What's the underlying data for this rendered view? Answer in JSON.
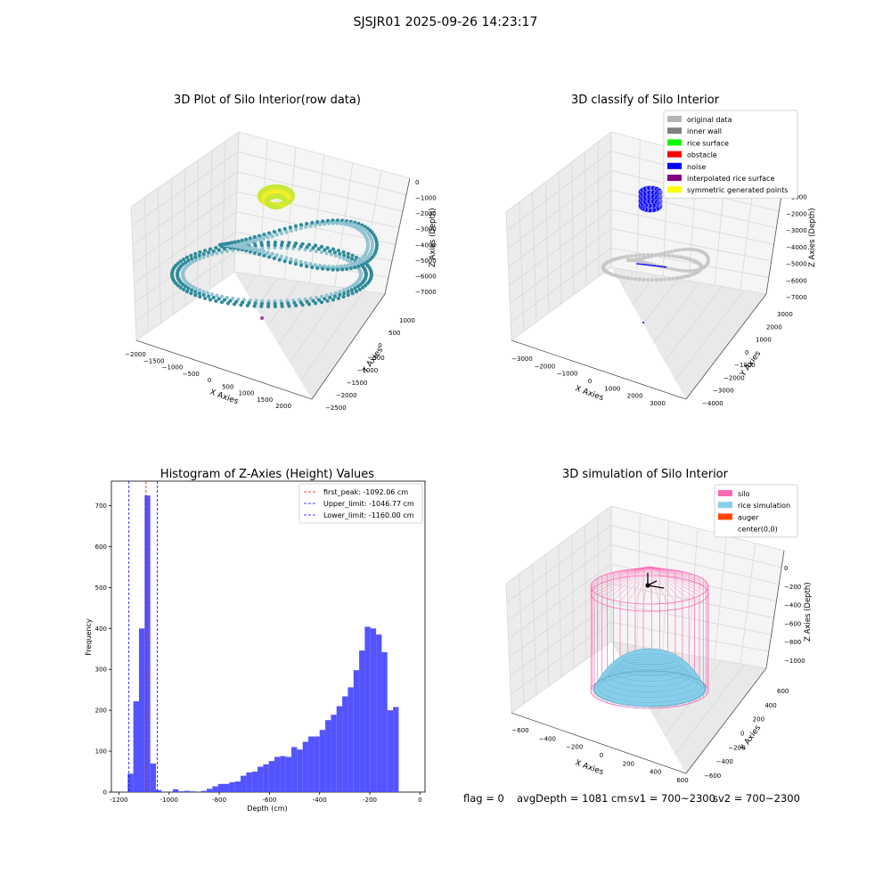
{
  "figure_title": "SJSJR01 2025-09-26 14:23:17",
  "footer": {
    "flag": "flag = 0",
    "avg_depth": "avgDepth = 1081 cm",
    "sv1": "sv1 = 700~2300",
    "sv2": "sv2 = 700~2300"
  },
  "colors": {
    "raw_points": "#2e8b9a",
    "raw_points_light": "#8fc3cf",
    "yellow_green": "#c9e836",
    "yellow": "#f2ee2a",
    "grey_data": "#c8c8c8",
    "hist_bar": "#4b4bff",
    "silo": "#ff69b4",
    "rice": "#87ceeb",
    "auger": "#ff4500",
    "peak_line": "#ff0000",
    "limit_line": "#0000ff"
  },
  "chart_data": [
    {
      "type": "scatter",
      "title": "3D Plot of Silo Interior(row data)",
      "xlabel": "X Axies",
      "ylabel": "Y Axies",
      "zlabel": "Z Axies (Depth)",
      "x_ticks": [
        "−2000",
        "−1500",
        "−1000",
        "−500",
        "0",
        "500",
        "1000",
        "1500",
        "2000"
      ],
      "y_ticks": [
        "−2500",
        "−2000",
        "−1500",
        "−1000",
        "−500",
        "0",
        "500",
        "1000"
      ],
      "z_ticks": [
        "0",
        "−1000",
        "−2000",
        "−3000",
        "−4000",
        "−5000",
        "−6000",
        "−7000"
      ],
      "xlim": [
        -2000,
        2000
      ],
      "ylim": [
        -2500,
        1000
      ],
      "zlim": [
        -7000,
        0
      ]
    },
    {
      "type": "scatter",
      "title": "3D classify of Silo Interior",
      "xlabel": "X Axies",
      "ylabel": "Y Axies",
      "zlabel": "Z Axies (Depth)",
      "x_ticks": [
        "−3000",
        "−2000",
        "−1000",
        "0",
        "1000",
        "2000",
        "3000"
      ],
      "y_ticks": [
        "−4000",
        "−3000",
        "−2000",
        "−1000",
        "0",
        "1000",
        "2000",
        "3000"
      ],
      "z_ticks": [
        "0",
        "−1000",
        "−2000",
        "−3000",
        "−4000",
        "−5000",
        "−6000",
        "−7000"
      ],
      "legend": [
        {
          "label": "original data",
          "color": "#b4b4b4"
        },
        {
          "label": "inner wall",
          "color": "#808080"
        },
        {
          "label": "rice surface",
          "color": "#00ff00"
        },
        {
          "label": "obstacle",
          "color": "#ff0000"
        },
        {
          "label": "noise",
          "color": "#0000ff"
        },
        {
          "label": "interpolated rice surface",
          "color": "#800080"
        },
        {
          "label": "symmetric generated points",
          "color": "#ffff00"
        }
      ],
      "legend_position": "top-right"
    },
    {
      "type": "bar",
      "title": "Histogram of Z-Axies (Height) Values",
      "xlabel": "Depth (cm)",
      "ylabel": "Frequency",
      "xlim": [
        -1230,
        20
      ],
      "ylim": [
        0,
        760
      ],
      "x_ticks": [
        -1200,
        -1000,
        -800,
        -600,
        -400,
        -200,
        0
      ],
      "y_ticks": [
        0,
        100,
        200,
        300,
        400,
        500,
        600,
        700
      ],
      "bin_width": 22.5,
      "bin_start": -1165,
      "values": [
        45,
        222,
        400,
        725,
        70,
        5,
        0,
        0,
        7,
        2,
        3,
        2,
        0,
        3,
        8,
        14,
        20,
        20,
        24,
        26,
        40,
        48,
        50,
        62,
        68,
        76,
        86,
        88,
        86,
        110,
        104,
        123,
        136,
        136,
        152,
        176,
        189,
        210,
        234,
        256,
        298,
        346,
        404,
        400,
        385,
        342,
        200,
        208
      ],
      "vlines": [
        {
          "label": "first_peak: -1092.06 cm",
          "x": -1092.06,
          "color": "#ff0000"
        },
        {
          "label": "Upper_limit: -1046.77 cm",
          "x": -1046.77,
          "color": "#0000ff"
        },
        {
          "label": "Lower_limit: -1160.00 cm",
          "x": -1160.0,
          "color": "#0000ff"
        }
      ],
      "legend_position": "top-right"
    },
    {
      "type": "scatter",
      "title": "3D simulation of Silo Interior",
      "xlabel": "X Axies",
      "ylabel": "Y Axies",
      "zlabel": "Z Axies (Depth)",
      "x_ticks": [
        "−600",
        "−400",
        "−200",
        "0",
        "200",
        "400",
        "600"
      ],
      "y_ticks": [
        "−600",
        "−400",
        "−200",
        "0",
        "200",
        "400",
        "600"
      ],
      "z_ticks": [
        "0",
        "−200",
        "−400",
        "−600",
        "−800",
        "−1000"
      ],
      "legend": [
        {
          "label": "silo",
          "color": "#ff69b4"
        },
        {
          "label": "rice simulation",
          "color": "#87ceeb"
        },
        {
          "label": "auger",
          "color": "#ff4500"
        },
        {
          "label": "center(0,0)",
          "color": "#ffffff"
        }
      ],
      "legend_position": "top-right"
    }
  ]
}
